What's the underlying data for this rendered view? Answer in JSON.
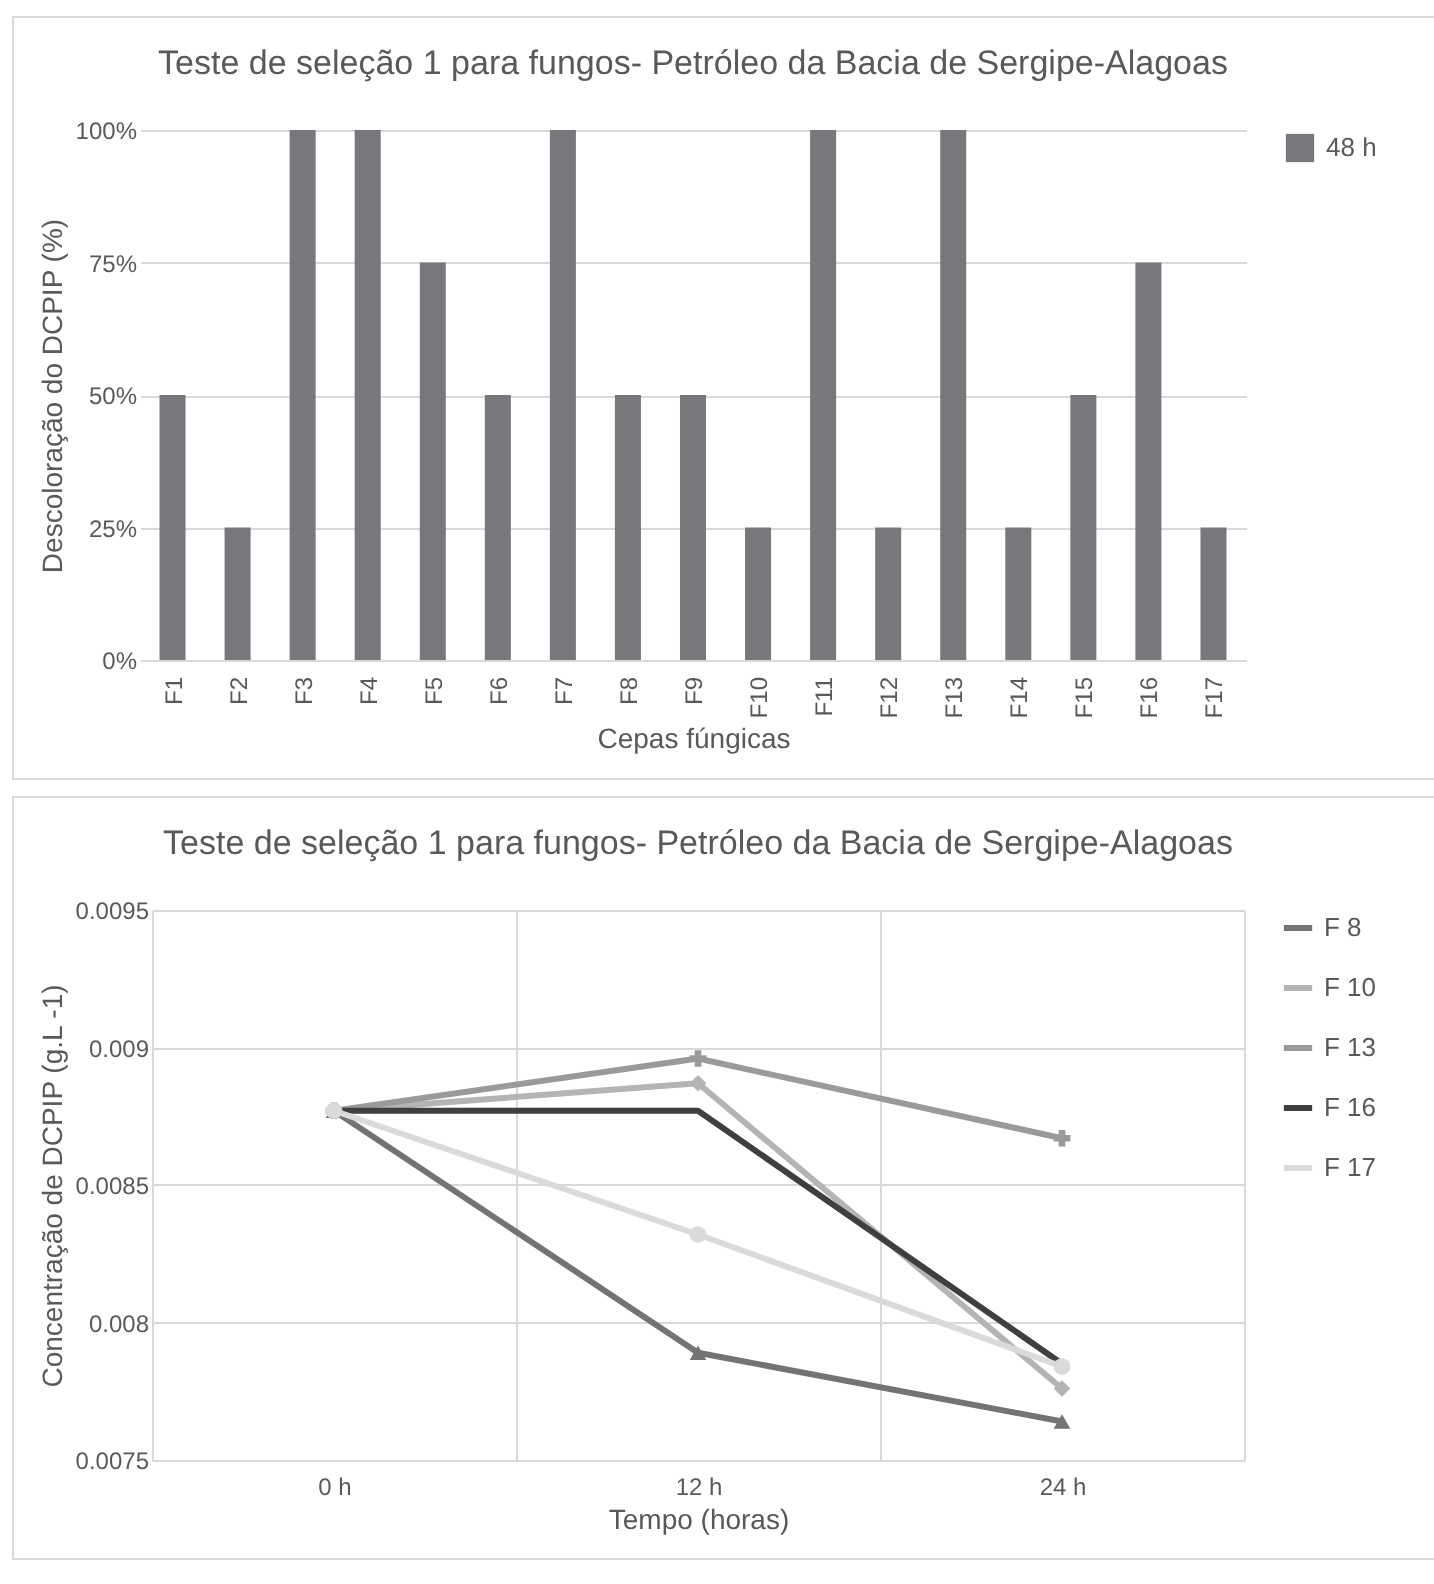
{
  "chart_data": [
    {
      "type": "bar",
      "title": "Teste de seleção 1 para fungos- Petróleo da Bacia de Sergipe-Alagoas",
      "xlabel": "Cepas fúngicas",
      "ylabel": "Descoloração do DCPIP (%)",
      "categories": [
        "F1",
        "F2",
        "F3",
        "F4",
        "F5",
        "F6",
        "F7",
        "F8",
        "F9",
        "F10",
        "F11",
        "F12",
        "F13",
        "F14",
        "F15",
        "F16",
        "F17"
      ],
      "series": [
        {
          "name": "48 h",
          "color": "#77787b",
          "values": [
            50,
            25,
            100,
            100,
            75,
            50,
            100,
            50,
            50,
            25,
            100,
            25,
            100,
            25,
            50,
            75,
            25
          ]
        }
      ],
      "ylim": [
        0,
        100
      ],
      "yticks": [
        {
          "value": 0,
          "label": "0%"
        },
        {
          "value": 25,
          "label": "25%"
        },
        {
          "value": 50,
          "label": "50%"
        },
        {
          "value": 75,
          "label": "75%"
        },
        {
          "value": 100,
          "label": "100%"
        }
      ],
      "grid": "y",
      "legend": "right"
    },
    {
      "type": "line",
      "title": "Teste de seleção 1 para fungos- Petróleo da Bacia de Sergipe-Alagoas",
      "xlabel": "Tempo (horas)",
      "ylabel": "Concentração de DCPIP  (g.L -1)",
      "categories": [
        "0 h",
        "12 h",
        "24 h"
      ],
      "series": [
        {
          "name": "F 8",
          "color": "#737373",
          "marker": "triangle",
          "values": [
            0.00877,
            0.00789,
            0.00764
          ]
        },
        {
          "name": "F 10",
          "color": "#b4b4b4",
          "marker": "diamond",
          "values": [
            0.00877,
            0.00887,
            0.00776
          ]
        },
        {
          "name": "F 13",
          "color": "#9a9a9a",
          "marker": "cross",
          "values": [
            0.00877,
            0.00896,
            0.00867
          ]
        },
        {
          "name": "F 16",
          "color": "#3f3f3f",
          "marker": "none",
          "values": [
            0.00877,
            0.00877,
            0.00785
          ]
        },
        {
          "name": "F 17",
          "color": "#dadada",
          "marker": "circle",
          "values": [
            0.00877,
            0.00832,
            0.00784
          ]
        }
      ],
      "ylim": [
        0.0075,
        0.0095
      ],
      "yticks": [
        0.0075,
        0.008,
        0.0085,
        0.009,
        0.0095
      ],
      "grid": true,
      "legend": "right"
    }
  ]
}
